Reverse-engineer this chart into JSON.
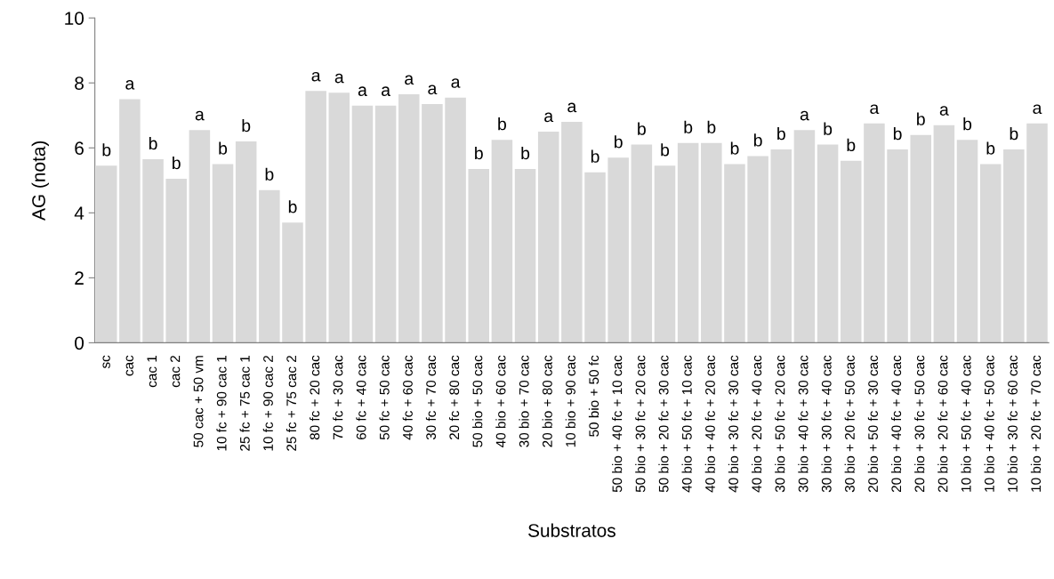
{
  "chart_data": {
    "type": "bar",
    "xlabel": "Substratos",
    "ylabel": "AG (nota)",
    "categories": [
      "sc",
      "cac",
      "cac 1",
      "cac 2",
      "50 cac + 50 vm",
      "10 fc + 90 cac 1",
      "25 fc + 75 cac 1",
      "10 fc + 90 cac 2",
      "25 fc + 75 cac 2",
      "80 fc + 20 cac",
      "70 fc + 30 cac",
      "60 fc + 40 cac",
      "50 fc + 50 cac",
      "40 fc + 60 cac",
      "30 fc + 70 cac",
      "20 fc + 80 cac",
      "50 bio + 50 cac",
      "40 bio + 60 cac",
      "30 bio + 70 cac",
      "20 bio + 80 cac",
      "10 bio + 90 cac",
      "50 bio + 50 fc",
      "50 bio + 40 fc + 10 cac",
      "50 bio + 30 fc + 20 cac",
      "50 bio + 20 fc + 30 cac",
      "40 bio + 50 fc + 10 cac",
      "40 bio + 40 fc + 20 cac",
      "40 bio + 30 fc + 30 cac",
      "40 bio + 20 fc + 40 cac",
      "30 bio + 50 fc + 20 cac",
      "30 bio + 40 fc + 30 cac",
      "30 bio + 30 fc + 40 cac",
      "30 bio + 20 fc + 50 cac",
      "20 bio + 50 fc + 30 cac",
      "20 bio + 40 fc + 40 cac",
      "20 bio + 30 fc + 50 cac",
      "20 bio + 20 fc + 60 cac",
      "10 bio + 50 fc + 40 cac",
      "10 bio + 40 fc + 50 cac",
      "10 bio + 30 fc + 60 cac",
      "10 bio + 20 fc + 70 cac"
    ],
    "values": [
      5.45,
      7.5,
      5.65,
      5.05,
      6.55,
      5.5,
      6.2,
      4.7,
      3.7,
      7.75,
      7.7,
      7.3,
      7.3,
      7.65,
      7.35,
      7.55,
      5.35,
      6.25,
      5.35,
      6.5,
      6.8,
      5.25,
      5.7,
      6.1,
      5.45,
      6.15,
      6.15,
      5.5,
      5.75,
      5.95,
      6.55,
      6.1,
      5.6,
      6.75,
      5.95,
      6.4,
      6.7,
      6.25,
      5.5,
      5.95,
      6.75
    ],
    "value_labels": [
      "b",
      "a",
      "b",
      "b",
      "a",
      "b",
      "b",
      "b",
      "b",
      "a",
      "a",
      "a",
      "a",
      "a",
      "a",
      "a",
      "b",
      "b",
      "b",
      "a",
      "a",
      "b",
      "b",
      "b",
      "b",
      "b",
      "b",
      "b",
      "b",
      "b",
      "a",
      "b",
      "b",
      "a",
      "b",
      "b",
      "a",
      "b",
      "b",
      "b",
      "a"
    ],
    "color": "#d9d9d9",
    "ylim": [
      0,
      10
    ],
    "yticks": [
      0,
      2,
      4,
      6,
      8,
      10
    ],
    "grid": false,
    "legend": false
  }
}
